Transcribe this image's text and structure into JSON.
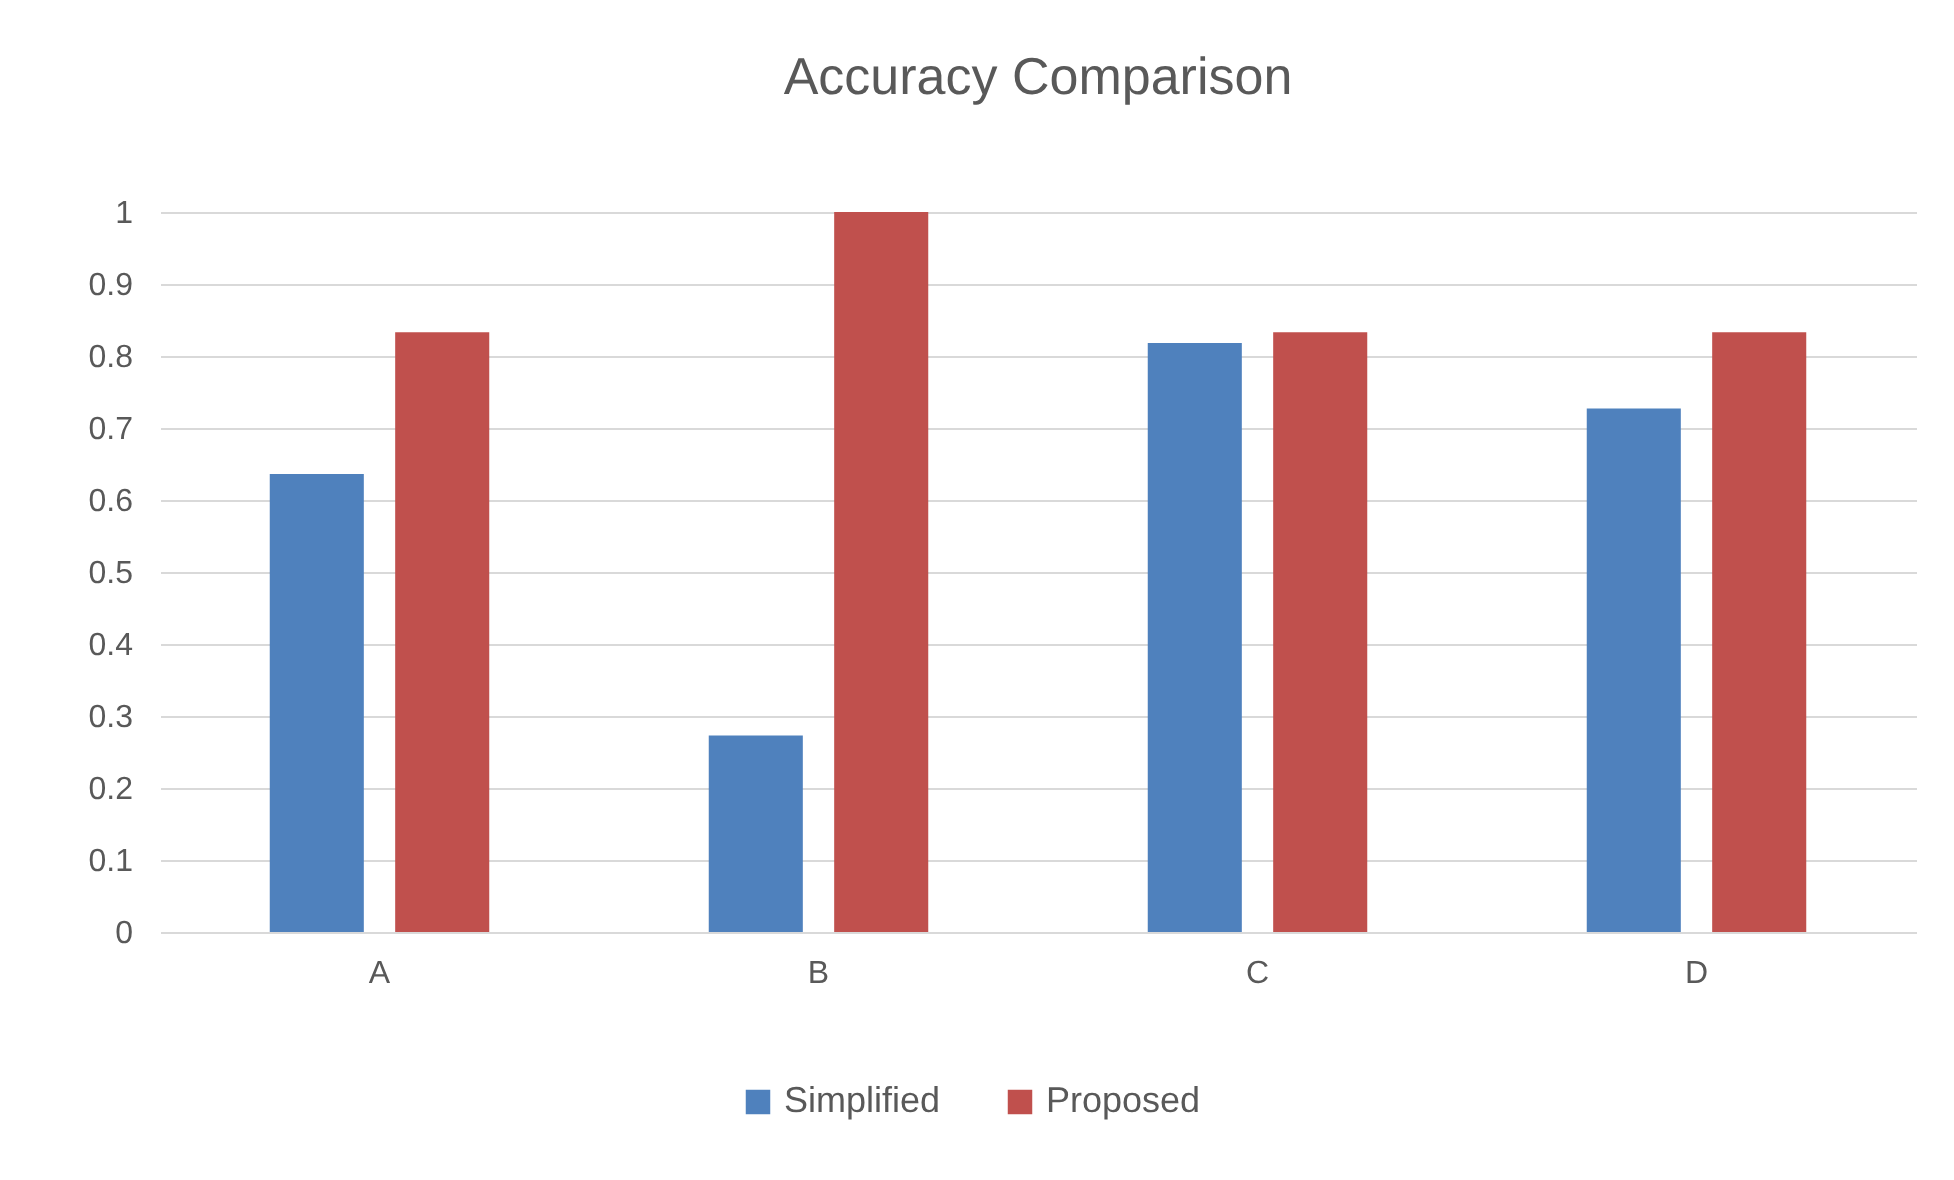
{
  "chart_data": {
    "type": "bar",
    "title": "Accuracy Comparison",
    "categories": [
      "A",
      "B",
      "C",
      "D"
    ],
    "series": [
      {
        "name": "Simplified",
        "color": "#4f81bd",
        "values": [
          0.636,
          0.273,
          0.818,
          0.727
        ]
      },
      {
        "name": "Proposed",
        "color": "#c0504d",
        "values": [
          0.833,
          1,
          0.833,
          0.833
        ]
      }
    ],
    "ylim": [
      0,
      1
    ],
    "yticks": [
      0,
      0.1,
      0.2,
      0.3,
      0.4,
      0.5,
      0.6,
      0.7,
      0.8,
      0.9,
      1
    ],
    "grid": "y",
    "legend": "bottom"
  }
}
